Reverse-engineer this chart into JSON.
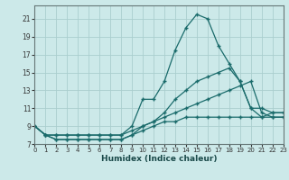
{
  "xlabel": "Humidex (Indice chaleur)",
  "bg_color": "#cce9e9",
  "grid_color": "#aacece",
  "line_color": "#1a6b6b",
  "xlim": [
    0,
    23
  ],
  "ylim": [
    7,
    22.5
  ],
  "xticks": [
    0,
    1,
    2,
    3,
    4,
    5,
    6,
    7,
    8,
    9,
    10,
    11,
    12,
    13,
    14,
    15,
    16,
    17,
    18,
    19,
    20,
    21,
    22,
    23
  ],
  "yticks": [
    7,
    9,
    11,
    13,
    15,
    17,
    19,
    21
  ],
  "lines": [
    {
      "x": [
        0,
        1,
        2,
        3,
        4,
        5,
        6,
        7,
        8,
        9,
        10,
        11,
        12,
        13,
        14,
        15,
        16,
        17,
        18,
        19,
        20,
        21,
        22,
        23
      ],
      "y": [
        9,
        8,
        8,
        8,
        8,
        8,
        8,
        8,
        8,
        9,
        12,
        12,
        14,
        17.5,
        20,
        21.5,
        21,
        18,
        16,
        14,
        11,
        11,
        10.5,
        10.5
      ]
    },
    {
      "x": [
        0,
        1,
        2,
        3,
        4,
        5,
        6,
        7,
        8,
        9,
        10,
        11,
        12,
        13,
        14,
        15,
        16,
        17,
        18,
        19,
        20,
        21,
        22,
        23
      ],
      "y": [
        9,
        8,
        8,
        8,
        8,
        8,
        8,
        8,
        8,
        8.5,
        9,
        9.5,
        10.5,
        12,
        13,
        14,
        14.5,
        15,
        15.5,
        14,
        11,
        10,
        10,
        10
      ]
    },
    {
      "x": [
        0,
        1,
        2,
        3,
        4,
        5,
        6,
        7,
        8,
        9,
        10,
        11,
        12,
        13,
        14,
        15,
        16,
        17,
        18,
        19,
        20,
        21,
        22,
        23
      ],
      "y": [
        9,
        8,
        7.5,
        7.5,
        7.5,
        7.5,
        7.5,
        7.5,
        7.5,
        8,
        9,
        9.5,
        10,
        10.5,
        11,
        11.5,
        12,
        12.5,
        13,
        13.5,
        14,
        10.5,
        10,
        10
      ]
    },
    {
      "x": [
        0,
        1,
        2,
        3,
        4,
        5,
        6,
        7,
        8,
        9,
        10,
        11,
        12,
        13,
        14,
        15,
        16,
        17,
        18,
        19,
        20,
        21,
        22,
        23
      ],
      "y": [
        9,
        8,
        7.5,
        7.5,
        7.5,
        7.5,
        7.5,
        7.5,
        7.5,
        8,
        8.5,
        9,
        9.5,
        9.5,
        10,
        10,
        10,
        10,
        10,
        10,
        10,
        10,
        10.5,
        10.5
      ]
    }
  ]
}
